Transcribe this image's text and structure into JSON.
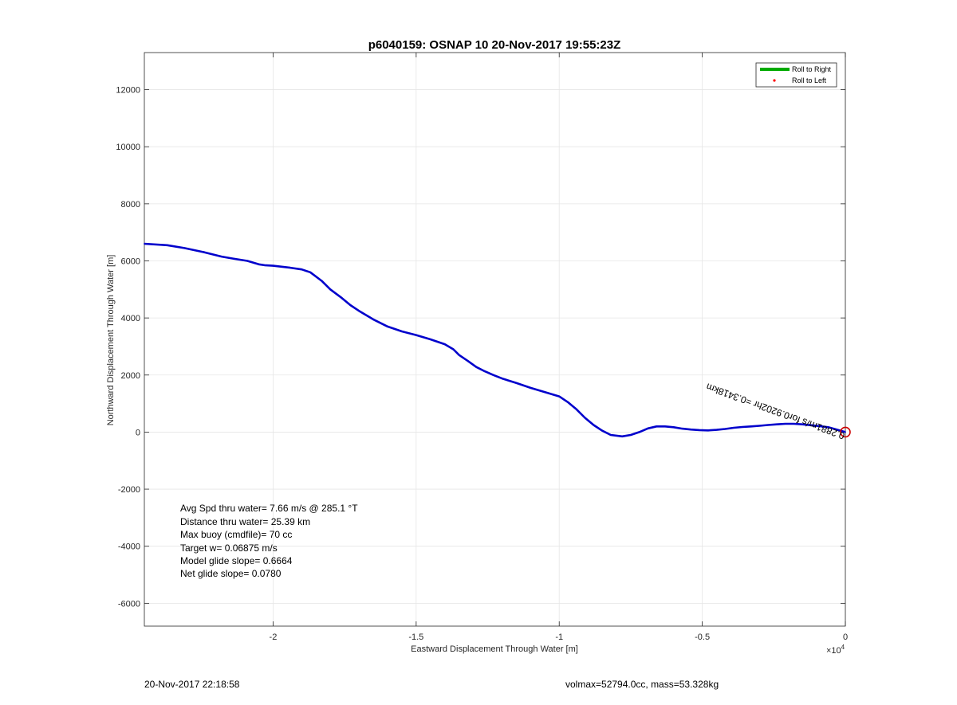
{
  "chart_data": {
    "type": "line",
    "title": "p6040159: OSNAP 10 20-Nov-2017 19:55:23Z",
    "xlabel": "Eastward Displacement Through Water [m]",
    "ylabel": "Northward Displacement Through Water [m]",
    "x_multiplier_label": "×10",
    "x_multiplier_exp": "4",
    "xlim": [
      -24500,
      0
    ],
    "ylim": [
      -6800,
      13300
    ],
    "xticks": [
      -20000,
      -15000,
      -10000,
      -5000,
      0
    ],
    "xtick_labels": [
      "-2",
      "-1.5",
      "-1",
      "-0.5",
      "0"
    ],
    "yticks": [
      -6000,
      -4000,
      -2000,
      0,
      2000,
      4000,
      6000,
      8000,
      10000,
      12000
    ],
    "ytick_labels": [
      "-6000",
      "-4000",
      "-2000",
      "0",
      "2000",
      "4000",
      "6000",
      "8000",
      "10000",
      "12000"
    ],
    "grid": true,
    "legend_position": "top-right",
    "legend": [
      "Roll to Right",
      "Roll to Left"
    ],
    "series": [
      {
        "name": "Roll to Right",
        "color": "#0000cc",
        "x": [
          -24500,
          -23700,
          -23100,
          -22400,
          -21800,
          -21400,
          -20900,
          -20500,
          -20300,
          -20000,
          -19400,
          -19000,
          -18700,
          -18300,
          -18000,
          -17600,
          -17300,
          -17000,
          -16500,
          -16000,
          -15500,
          -15000,
          -14500,
          -14000,
          -13700,
          -13500,
          -13200,
          -12900,
          -12600,
          -12300,
          -12000,
          -11500,
          -11000,
          -10500,
          -10000,
          -9700,
          -9400,
          -9100,
          -8800,
          -8500,
          -8200,
          -7800,
          -7500,
          -7200,
          -6900,
          -6600,
          -6300,
          -6000,
          -5700,
          -5400,
          -5100,
          -4800,
          -4500,
          -4200,
          -3900,
          -3600,
          -3300,
          -3000,
          -2700,
          -2400,
          -2100,
          -1800,
          -1500,
          -1200,
          -900,
          -600,
          -300,
          0
        ],
        "y": [
          6600,
          6550,
          6450,
          6300,
          6150,
          6080,
          6000,
          5880,
          5850,
          5830,
          5760,
          5700,
          5600,
          5300,
          5000,
          4700,
          4450,
          4250,
          3950,
          3700,
          3530,
          3400,
          3250,
          3080,
          2900,
          2700,
          2500,
          2280,
          2130,
          2000,
          1880,
          1720,
          1550,
          1400,
          1250,
          1050,
          800,
          500,
          250,
          50,
          -100,
          -150,
          -100,
          0,
          130,
          200,
          200,
          170,
          120,
          90,
          70,
          60,
          80,
          110,
          150,
          180,
          200,
          220,
          250,
          270,
          290,
          290,
          270,
          240,
          210,
          170,
          90,
          0
        ]
      },
      {
        "name": "Roll to Left",
        "color": "#ff0000",
        "x": [],
        "y": []
      }
    ],
    "start_marker": {
      "x": 0,
      "y": 0,
      "color": "#cc0000"
    },
    "current_label": "0.2881m/s for0.9202hr =0.3418km",
    "stats": [
      "Avg Spd thru water=  7.66 m/s @ 285.1 °T",
      "Distance thru water= 25.39 km",
      "Max buoy (cmdfile)= 70 cc",
      "Target w= 0.06875 m/s",
      "Model glide slope= 0.6664",
      "Net glide slope= 0.0780"
    ]
  },
  "footer": {
    "timestamp": "20-Nov-2017 22:18:58",
    "volmax": "volmax=52794.0cc, mass=53.328kg"
  }
}
